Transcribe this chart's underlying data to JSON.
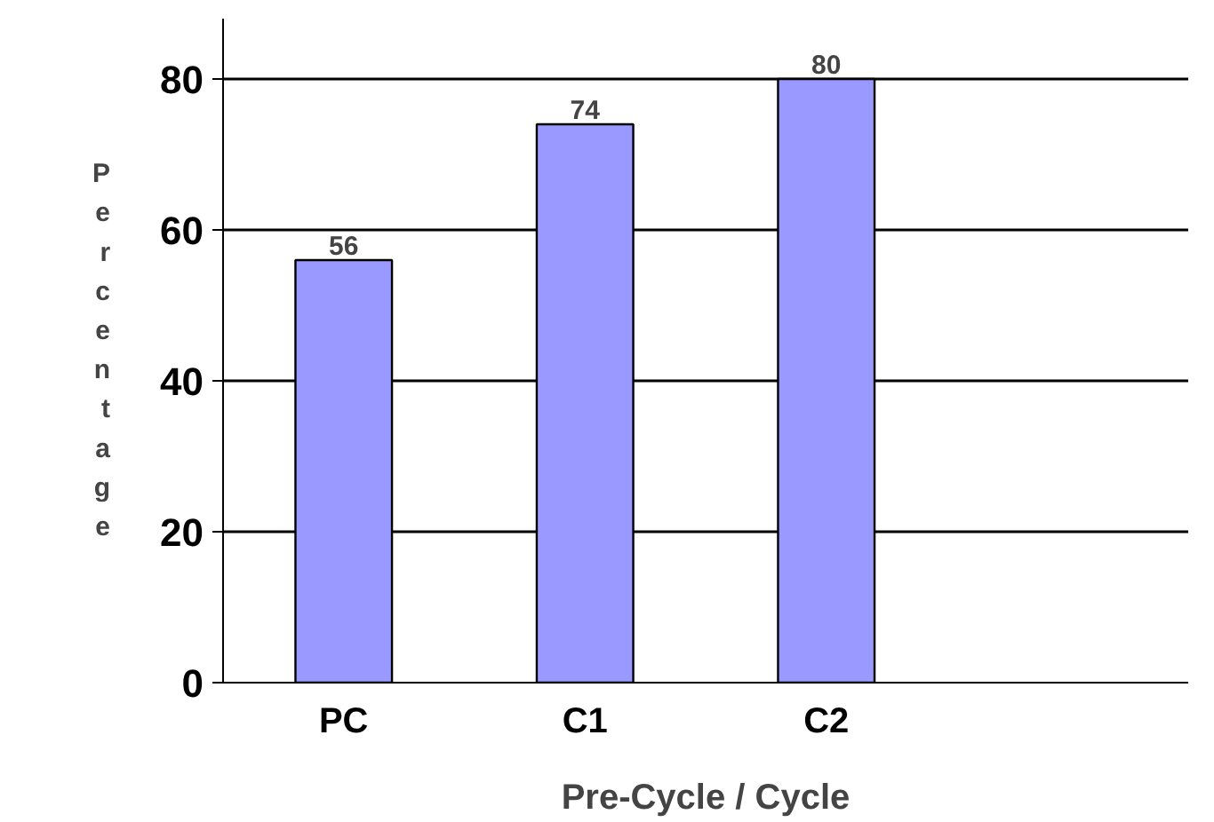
{
  "chart_data": {
    "type": "bar",
    "xlabel": "Pre-Cycle / Cycle",
    "ylabel": "Percentage",
    "categories": [
      "PC",
      "C1",
      "C2",
      null
    ],
    "values": [
      56,
      74,
      80,
      null
    ],
    "color": "#9999ff",
    "ylim": [
      0,
      88
    ],
    "yticks": [
      0,
      20,
      40,
      60,
      80
    ],
    "grid": "y",
    "data_labels": true
  }
}
